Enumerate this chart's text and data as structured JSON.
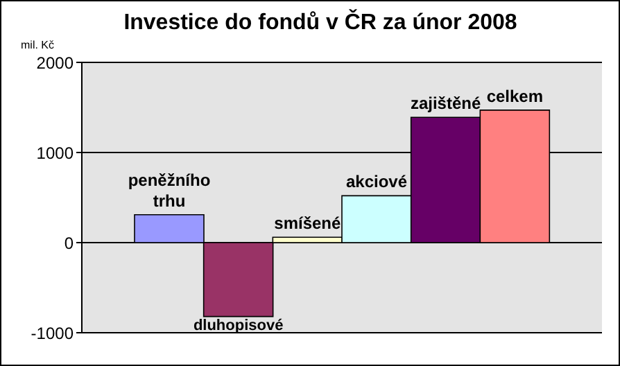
{
  "chart_data": {
    "type": "bar",
    "title": "Investice do fondů v ČR za únor 2008",
    "ylabel": "mil. Kč",
    "categories": [
      "peněžního trhu",
      "dluhopisové",
      "smíšené",
      "akciové",
      "zajištěné",
      "celkem"
    ],
    "values": [
      310,
      -820,
      60,
      520,
      1390,
      1470
    ],
    "colors": [
      "#9999ff",
      "#993366",
      "#ffffcc",
      "#ccffff",
      "#660066",
      "#ff8080"
    ],
    "ylim": [
      -1000,
      2000
    ],
    "yticks": [
      -1000,
      0,
      1000,
      2000
    ],
    "grid": "y",
    "tick_labels": "y",
    "legend": false
  }
}
